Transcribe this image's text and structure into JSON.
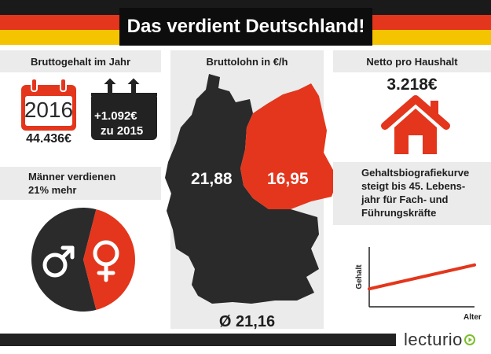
{
  "colors": {
    "black": "#222222",
    "red": "#e3361c",
    "gold": "#f5c400",
    "panel": "#ebebeb"
  },
  "header": {
    "title": "Das verdient Deutschland!"
  },
  "gross": {
    "label": "Bruttogehalt im Jahr",
    "year": "2016",
    "amount": "44.436€",
    "increase": "+1.092€",
    "compare": "zu 2015"
  },
  "gender": {
    "label_line1": "Männer verdienen",
    "label_line2": "21% mehr",
    "pie_female_percent": 42,
    "male_icon": "male-symbol-icon",
    "female_icon": "female-symbol-icon"
  },
  "wage": {
    "label": "Bruttolohn in €/h",
    "west": "21,88",
    "east": "16,95",
    "average": "Ø 21,16"
  },
  "net": {
    "label": "Netto pro Haushalt",
    "amount": "3.218€",
    "icon": "house-icon"
  },
  "curve": {
    "line1": "Gehaltsbiografiekurve",
    "line2": "steigt bis 45. Lebens-",
    "line3": "jahr für Fach- und",
    "line4": "Führungskräfte",
    "ylabel": "Gehalt",
    "xlabel": "Alter"
  },
  "footer": {
    "brand": "lecturio"
  },
  "chart_data": [
    {
      "type": "pie",
      "title": "Männer verdienen 21% mehr",
      "categories": [
        "Männer",
        "Frauen"
      ],
      "values": [
        58,
        42
      ]
    },
    {
      "type": "line",
      "title": "Gehaltsbiografiekurve",
      "xlabel": "Alter",
      "ylabel": "Gehalt",
      "x": [
        0,
        1
      ],
      "y": [
        0.3,
        0.7
      ]
    }
  ]
}
